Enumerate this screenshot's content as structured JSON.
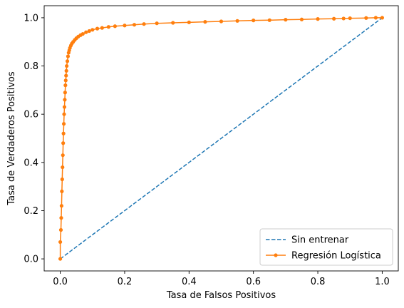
{
  "chart_data": {
    "type": "line",
    "title": "",
    "xlabel": "Tasa de Falsos Positivos",
    "ylabel": "Tasa de Verdaderos Positivos",
    "xlim": [
      -0.05,
      1.05
    ],
    "ylim": [
      -0.05,
      1.05
    ],
    "xticks": [
      "0.0",
      "0.2",
      "0.4",
      "0.6",
      "0.8",
      "1.0"
    ],
    "yticks": [
      "0.0",
      "0.2",
      "0.4",
      "0.6",
      "0.8",
      "1.0"
    ],
    "grid": false,
    "legend_position": "lower-right",
    "series": [
      {
        "name": "Sin entrenar",
        "style": "dashed",
        "color": "#1f77b4",
        "x": [
          0,
          1
        ],
        "y": [
          0,
          1
        ]
      },
      {
        "name": "Regresión Logística",
        "style": "solid-with-dots",
        "color": "#ff7f0e",
        "x": [
          0,
          0,
          0.002,
          0.003,
          0.004,
          0.005,
          0.006,
          0.007,
          0.008,
          0.009,
          0.01,
          0.011,
          0.012,
          0.013,
          0.014,
          0.015,
          0.016,
          0.017,
          0.018,
          0.019,
          0.02,
          0.022,
          0.024,
          0.026,
          0.028,
          0.03,
          0.033,
          0.036,
          0.04,
          0.045,
          0.05,
          0.056,
          0.063,
          0.07,
          0.08,
          0.09,
          0.1,
          0.115,
          0.13,
          0.15,
          0.17,
          0.2,
          0.23,
          0.26,
          0.3,
          0.35,
          0.4,
          0.45,
          0.5,
          0.55,
          0.6,
          0.65,
          0.7,
          0.75,
          0.8,
          0.85,
          0.88,
          0.9,
          0.95,
          0.98,
          1.0
        ],
        "y": [
          0,
          0.07,
          0.12,
          0.17,
          0.22,
          0.28,
          0.33,
          0.38,
          0.43,
          0.48,
          0.52,
          0.56,
          0.6,
          0.63,
          0.66,
          0.69,
          0.72,
          0.74,
          0.76,
          0.78,
          0.8,
          0.82,
          0.84,
          0.855,
          0.865,
          0.875,
          0.885,
          0.893,
          0.9,
          0.908,
          0.915,
          0.922,
          0.928,
          0.933,
          0.94,
          0.945,
          0.95,
          0.955,
          0.958,
          0.962,
          0.965,
          0.968,
          0.971,
          0.974,
          0.977,
          0.979,
          0.981,
          0.983,
          0.985,
          0.987,
          0.989,
          0.99,
          0.992,
          0.993,
          0.995,
          0.996,
          0.997,
          0.998,
          0.999,
          1.0,
          1.0
        ]
      }
    ]
  }
}
